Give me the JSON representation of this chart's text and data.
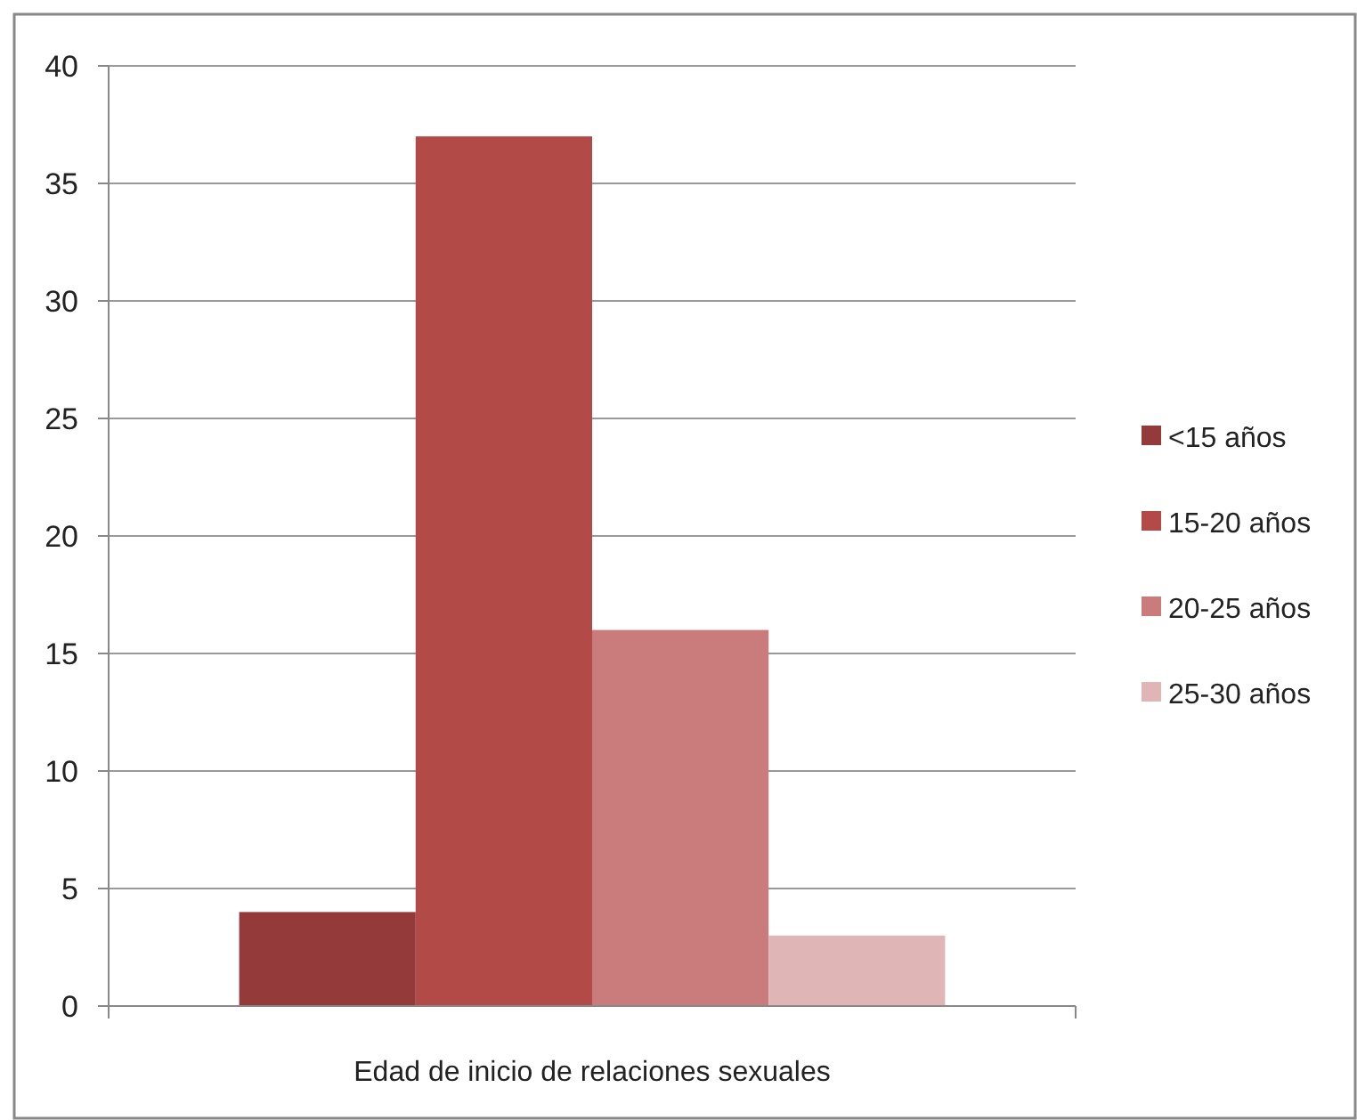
{
  "chart_data": {
    "type": "bar",
    "categories": [
      "Edad de inicio de relaciones sexuales"
    ],
    "series": [
      {
        "name": "<15 años",
        "color": "#953a3a",
        "values": [
          4
        ]
      },
      {
        "name": "15-20 años",
        "color": "#b24b48",
        "values": [
          37
        ]
      },
      {
        "name": "20-25 años",
        "color": "#c97c7b",
        "values": [
          16
        ]
      },
      {
        "name": "25-30 años",
        "color": "#dfb5b5",
        "values": [
          3
        ]
      }
    ],
    "ylim": [
      0,
      40
    ],
    "yticks": [
      0,
      5,
      10,
      15,
      20,
      25,
      30,
      35,
      40
    ],
    "grid": "y",
    "legend": "right"
  }
}
